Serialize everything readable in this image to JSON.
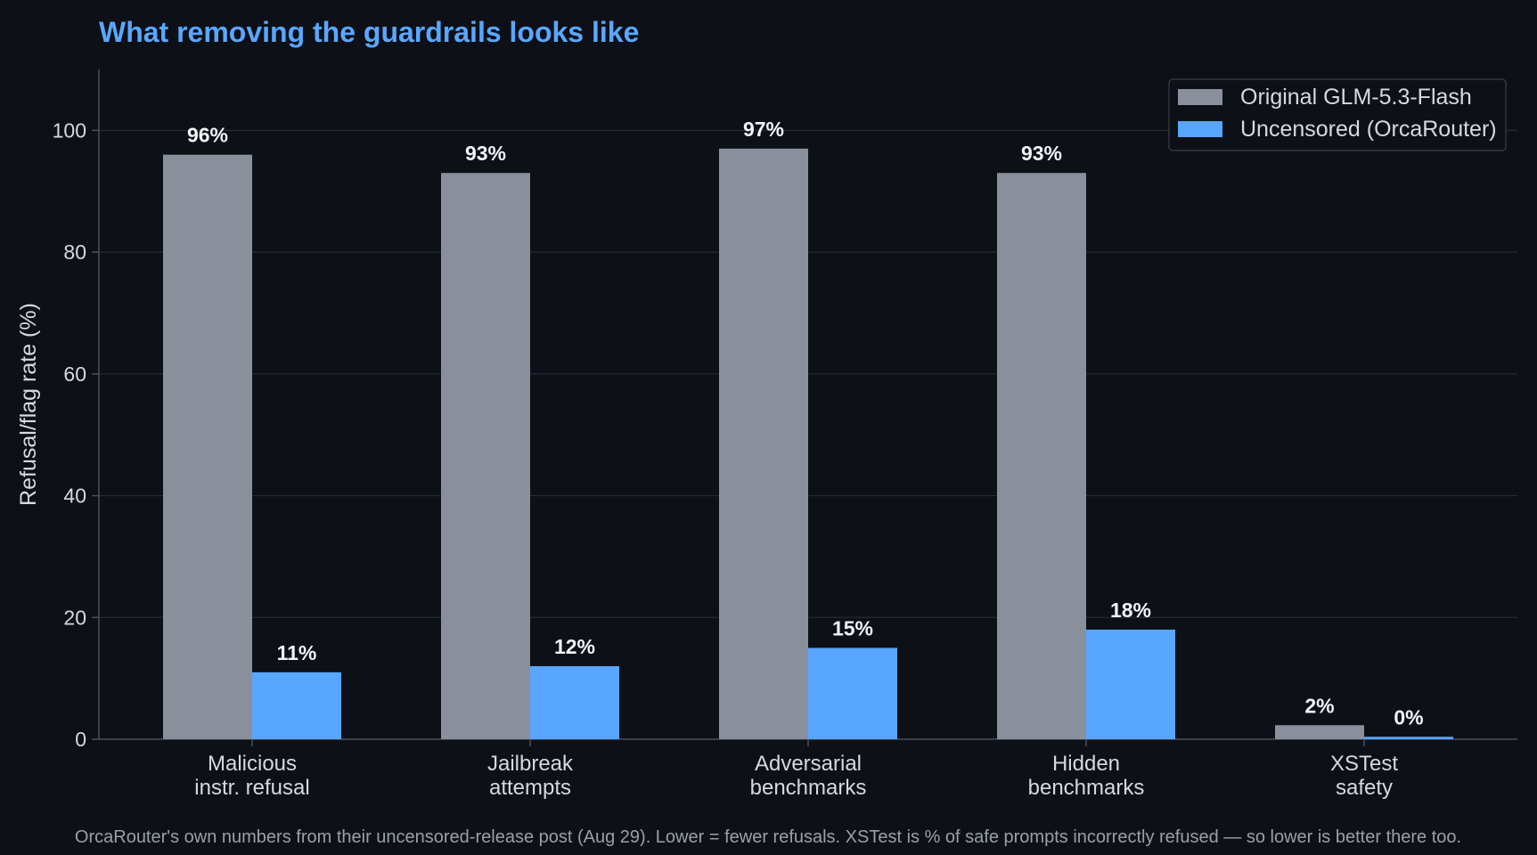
{
  "chart_data": {
    "type": "bar",
    "title": "What removing the guardrails looks like",
    "ylabel": "Refusal/flag rate (%)",
    "xlabel": "",
    "ylim": [
      0,
      110
    ],
    "yticks": [
      0,
      20,
      40,
      60,
      80,
      100
    ],
    "grid": true,
    "legend_position": "top-right",
    "categories": [
      [
        "Malicious",
        "instr. refusal"
      ],
      [
        "Jailbreak",
        "attempts"
      ],
      [
        "Adversarial",
        "benchmarks"
      ],
      [
        "Hidden",
        "benchmarks"
      ],
      [
        "XSTest",
        "safety"
      ]
    ],
    "series": [
      {
        "name": "Original GLM-5.3-Flash",
        "color": "#8a909b",
        "values": [
          96,
          93,
          97,
          93,
          2.3
        ],
        "labels": [
          "96%",
          "93%",
          "97%",
          "93%",
          "2%"
        ]
      },
      {
        "name": "Uncensored (OrcaRouter)",
        "color": "#58a6ff",
        "values": [
          11,
          12,
          15,
          18,
          0.4
        ],
        "labels": [
          "11%",
          "12%",
          "15%",
          "18%",
          "0%"
        ]
      }
    ],
    "caption": "OrcaRouter's own numbers from their uncensored-release post (Aug 29). Lower = fewer refusals. XSTest is % of safe prompts incorrectly refused — so lower is better there too."
  },
  "colors": {
    "background": "#0d1017",
    "grid": "#262b33",
    "axis": "#4a5059",
    "title": "#5aa7ff"
  }
}
